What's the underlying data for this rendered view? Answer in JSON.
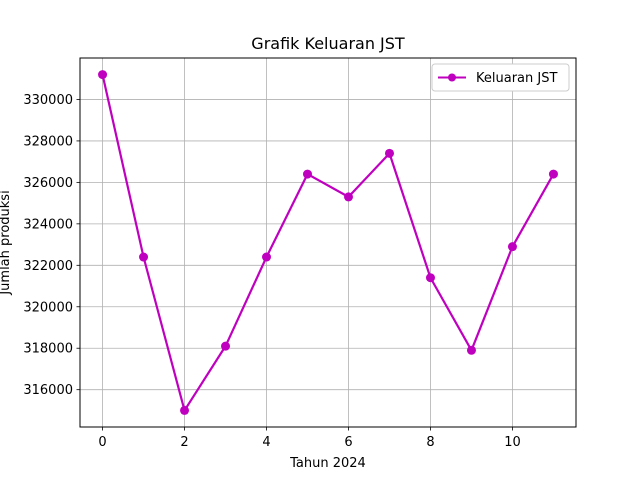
{
  "chart_data": {
    "type": "line",
    "title": "Grafik Keluaran JST",
    "xlabel": "Tahun 2024",
    "ylabel": "Jumlah produksi",
    "x": [
      0,
      1,
      2,
      3,
      4,
      5,
      6,
      7,
      8,
      9,
      10,
      11
    ],
    "series": [
      {
        "name": "Keluaran JST",
        "color": "#bf00bf",
        "marker": "circle",
        "values": [
          331200,
          322400,
          315000,
          318100,
          322400,
          326400,
          325300,
          327400,
          321400,
          317900,
          322900,
          326400
        ]
      }
    ],
    "xlim": [
      -0.55,
      11.55
    ],
    "ylim": [
      314200,
      332000
    ],
    "xticks": [
      0,
      2,
      4,
      6,
      8,
      10
    ],
    "yticks": [
      316000,
      318000,
      320000,
      322000,
      324000,
      326000,
      328000,
      330000
    ],
    "grid": true,
    "legend": "top-right"
  }
}
